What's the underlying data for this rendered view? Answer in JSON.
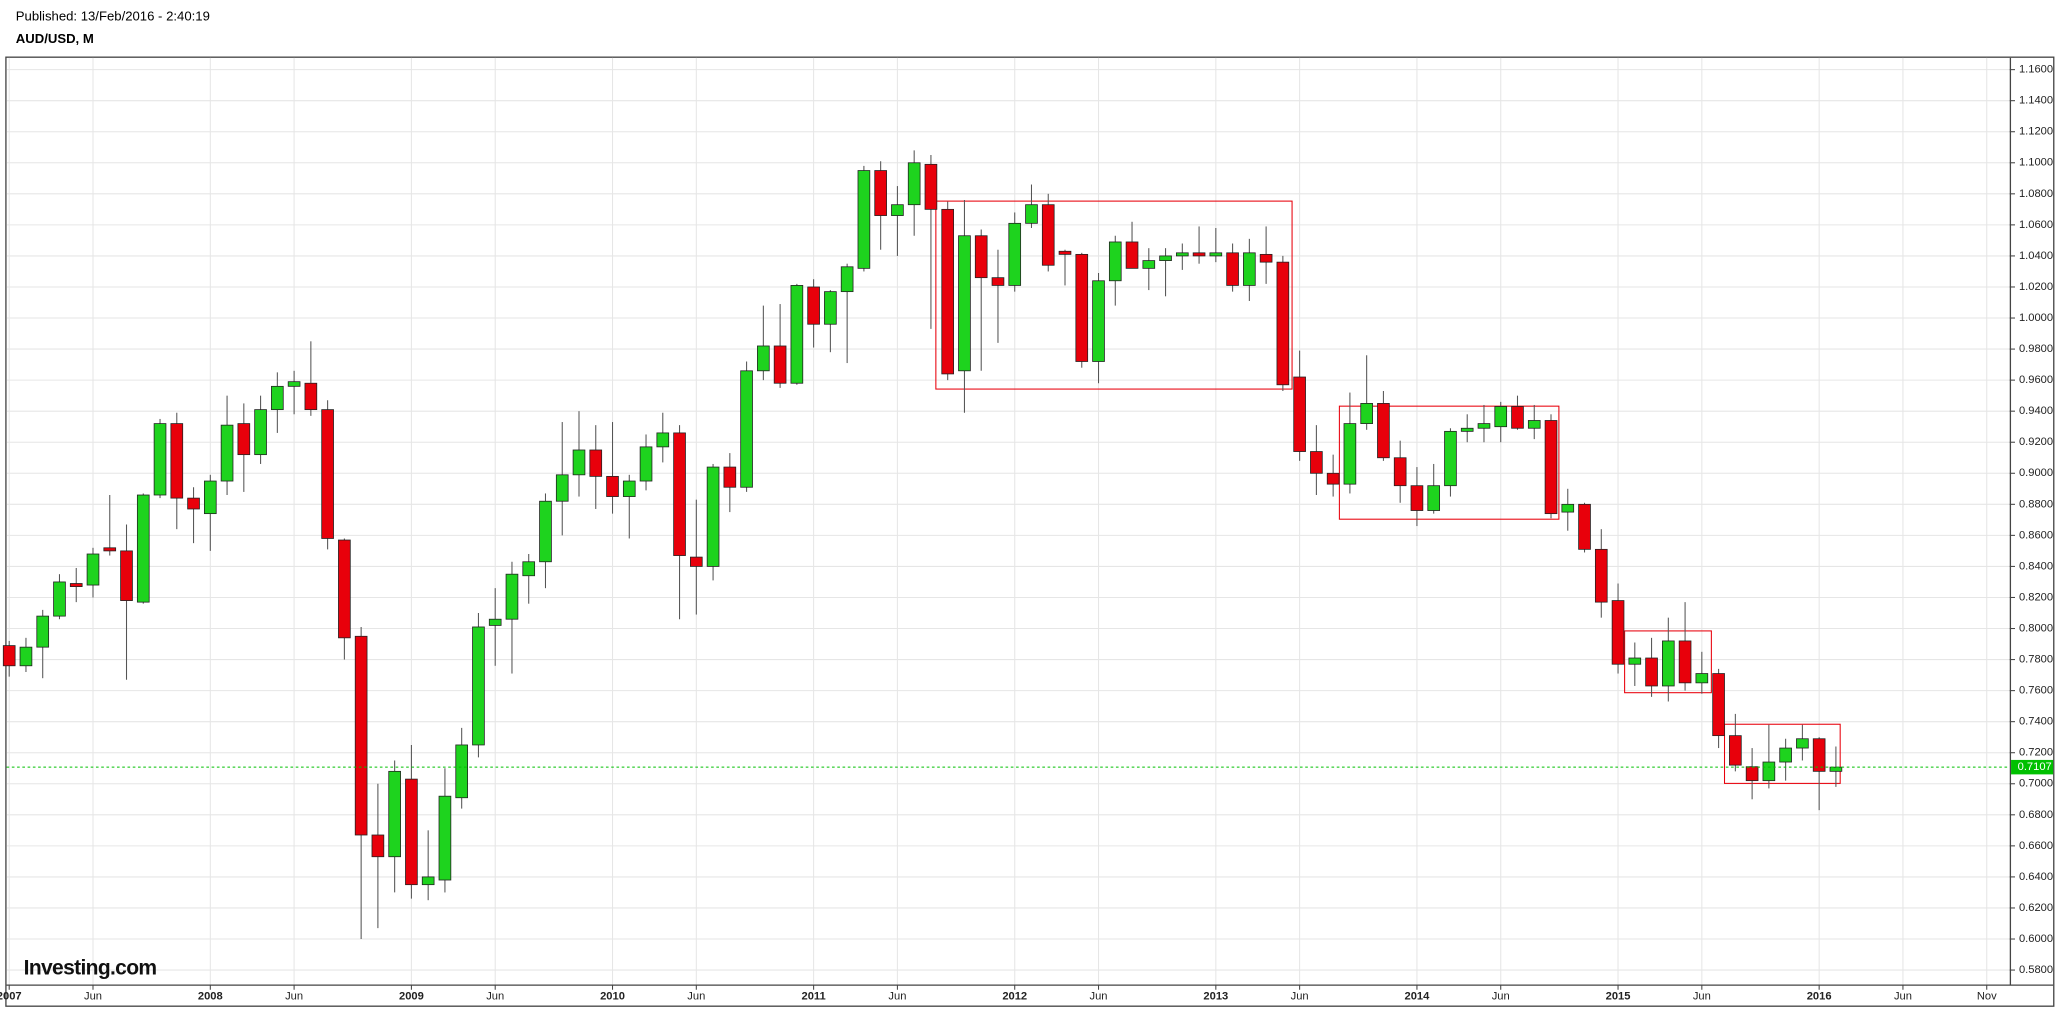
{
  "chart_data": {
    "type": "candlestick",
    "published": "Published: 13/Feb/2016 - 2:40:19",
    "title": "AUD/USD, M",
    "logo": "Investing.com",
    "categories": [
      "2007-01",
      "2007-02",
      "2007-03",
      "2007-04",
      "2007-05",
      "2007-06",
      "2007-07",
      "2007-08",
      "2007-09",
      "2007-10",
      "2007-11",
      "2007-12",
      "2008-01",
      "2008-02",
      "2008-03",
      "2008-04",
      "2008-05",
      "2008-06",
      "2008-07",
      "2008-08",
      "2008-09",
      "2008-10",
      "2008-11",
      "2008-12",
      "2009-01",
      "2009-02",
      "2009-03",
      "2009-04",
      "2009-05",
      "2009-06",
      "2009-07",
      "2009-08",
      "2009-09",
      "2009-10",
      "2009-11",
      "2009-12",
      "2010-01",
      "2010-02",
      "2010-03",
      "2010-04",
      "2010-05",
      "2010-06",
      "2010-07",
      "2010-08",
      "2010-09",
      "2010-10",
      "2010-11",
      "2010-12",
      "2011-01",
      "2011-02",
      "2011-03",
      "2011-04",
      "2011-05",
      "2011-06",
      "2011-07",
      "2011-08",
      "2011-09",
      "2011-10",
      "2011-11",
      "2011-12",
      "2012-01",
      "2012-02",
      "2012-03",
      "2012-04",
      "2012-05",
      "2012-06",
      "2012-07",
      "2012-08",
      "2012-09",
      "2012-10",
      "2012-11",
      "2012-12",
      "2013-01",
      "2013-02",
      "2013-03",
      "2013-04",
      "2013-05",
      "2013-06",
      "2013-07",
      "2013-08",
      "2013-09",
      "2013-10",
      "2013-11",
      "2013-12",
      "2014-01",
      "2014-02",
      "2014-03",
      "2014-04",
      "2014-05",
      "2014-06",
      "2014-07",
      "2014-08",
      "2014-09",
      "2014-10",
      "2014-11",
      "2014-12",
      "2015-01",
      "2015-02",
      "2015-03",
      "2015-04",
      "2015-05",
      "2015-06",
      "2015-07",
      "2015-08",
      "2015-09",
      "2015-10",
      "2015-11",
      "2015-12",
      "2016-01",
      "2016-02"
    ],
    "open": [
      0.789,
      0.776,
      0.788,
      0.808,
      0.829,
      0.828,
      0.852,
      0.85,
      0.817,
      0.886,
      0.932,
      0.884,
      0.874,
      0.895,
      0.932,
      0.912,
      0.941,
      0.956,
      0.958,
      0.941,
      0.857,
      0.795,
      0.667,
      0.653,
      0.703,
      0.635,
      0.638,
      0.691,
      0.725,
      0.802,
      0.806,
      0.834,
      0.843,
      0.882,
      0.899,
      0.915,
      0.898,
      0.885,
      0.895,
      0.917,
      0.926,
      0.846,
      0.84,
      0.904,
      0.891,
      0.966,
      0.982,
      0.958,
      1.02,
      0.996,
      1.017,
      1.032,
      1.095,
      1.066,
      1.073,
      1.099,
      1.07,
      0.966,
      1.053,
      1.026,
      1.021,
      1.061,
      1.073,
      1.043,
      1.041,
      0.972,
      1.024,
      1.049,
      1.032,
      1.037,
      1.04,
      1.042,
      1.04,
      1.042,
      1.021,
      1.041,
      1.036,
      0.962,
      0.914,
      0.9,
      0.893,
      0.932,
      0.945,
      0.91,
      0.892,
      0.876,
      0.892,
      0.927,
      0.929,
      0.93,
      0.943,
      0.929,
      0.934,
      0.875,
      0.88,
      0.851,
      0.818,
      0.777,
      0.781,
      0.763,
      0.792,
      0.765,
      0.771,
      0.731,
      0.711,
      0.702,
      0.714,
      0.723,
      0.729,
      0.708
    ],
    "high": [
      0.792,
      0.794,
      0.812,
      0.835,
      0.839,
      0.852,
      0.886,
      0.867,
      0.887,
      0.935,
      0.939,
      0.891,
      0.899,
      0.95,
      0.945,
      0.95,
      0.965,
      0.966,
      0.985,
      0.947,
      0.858,
      0.801,
      0.7,
      0.715,
      0.725,
      0.67,
      0.71,
      0.736,
      0.81,
      0.826,
      0.843,
      0.848,
      0.887,
      0.933,
      0.94,
      0.931,
      0.933,
      0.899,
      0.925,
      0.939,
      0.931,
      0.883,
      0.906,
      0.913,
      0.972,
      1.008,
      1.009,
      1.022,
      1.025,
      1.018,
      1.035,
      1.098,
      1.101,
      1.085,
      1.108,
      1.105,
      1.075,
      1.076,
      1.057,
      1.044,
      1.068,
      1.086,
      1.08,
      1.044,
      1.042,
      1.029,
      1.053,
      1.062,
      1.045,
      1.045,
      1.048,
      1.059,
      1.058,
      1.048,
      1.051,
      1.059,
      1.04,
      0.979,
      0.931,
      0.912,
      0.952,
      0.976,
      0.953,
      0.921,
      0.904,
      0.906,
      0.929,
      0.938,
      0.944,
      0.946,
      0.95,
      0.944,
      0.938,
      0.89,
      0.881,
      0.864,
      0.829,
      0.791,
      0.794,
      0.807,
      0.817,
      0.785,
      0.774,
      0.745,
      0.723,
      0.738,
      0.729,
      0.738,
      0.73,
      0.724
    ],
    "low": [
      0.769,
      0.772,
      0.768,
      0.806,
      0.817,
      0.82,
      0.847,
      0.767,
      0.816,
      0.884,
      0.864,
      0.855,
      0.85,
      0.886,
      0.888,
      0.906,
      0.926,
      0.938,
      0.937,
      0.851,
      0.78,
      0.6,
      0.607,
      0.63,
      0.626,
      0.625,
      0.63,
      0.684,
      0.717,
      0.776,
      0.771,
      0.816,
      0.826,
      0.86,
      0.885,
      0.877,
      0.874,
      0.858,
      0.889,
      0.907,
      0.806,
      0.809,
      0.831,
      0.875,
      0.888,
      0.96,
      0.955,
      0.957,
      0.981,
      0.978,
      0.971,
      1.03,
      1.044,
      1.04,
      1.053,
      0.993,
      0.96,
      0.939,
      0.966,
      0.984,
      1.017,
      1.058,
      1.03,
      1.021,
      0.968,
      0.958,
      1.008,
      1.032,
      1.018,
      1.014,
      1.031,
      1.035,
      1.036,
      1.017,
      1.011,
      1.022,
      0.953,
      0.908,
      0.886,
      0.885,
      0.887,
      0.928,
      0.908,
      0.881,
      0.866,
      0.874,
      0.885,
      0.92,
      0.92,
      0.92,
      0.928,
      0.922,
      0.871,
      0.863,
      0.849,
      0.807,
      0.771,
      0.763,
      0.756,
      0.753,
      0.76,
      0.758,
      0.723,
      0.708,
      0.69,
      0.697,
      0.702,
      0.715,
      0.683,
      0.698
    ],
    "close": [
      0.776,
      0.788,
      0.808,
      0.83,
      0.827,
      0.848,
      0.85,
      0.818,
      0.886,
      0.932,
      0.884,
      0.877,
      0.895,
      0.931,
      0.912,
      0.941,
      0.956,
      0.959,
      0.941,
      0.858,
      0.794,
      0.667,
      0.653,
      0.708,
      0.635,
      0.64,
      0.692,
      0.725,
      0.801,
      0.806,
      0.835,
      0.843,
      0.882,
      0.899,
      0.915,
      0.898,
      0.885,
      0.895,
      0.917,
      0.926,
      0.847,
      0.84,
      0.904,
      0.891,
      0.966,
      0.982,
      0.958,
      1.021,
      0.996,
      1.017,
      1.033,
      1.095,
      1.066,
      1.073,
      1.1,
      1.07,
      0.964,
      1.053,
      1.026,
      1.021,
      1.061,
      1.073,
      1.034,
      1.041,
      0.972,
      1.024,
      1.049,
      1.032,
      1.037,
      1.04,
      1.042,
      1.04,
      1.042,
      1.021,
      1.042,
      1.036,
      0.957,
      0.914,
      0.9,
      0.893,
      0.932,
      0.945,
      0.91,
      0.892,
      0.876,
      0.892,
      0.927,
      0.929,
      0.932,
      0.943,
      0.929,
      0.934,
      0.874,
      0.88,
      0.851,
      0.817,
      0.777,
      0.781,
      0.763,
      0.792,
      0.765,
      0.771,
      0.731,
      0.712,
      0.702,
      0.714,
      0.723,
      0.729,
      0.708,
      0.7107
    ],
    "up_color": "#1ed31e",
    "down_color": "#e8000b",
    "last_price": 0.7107,
    "last_price_color": "#00c000",
    "ylim": [
      0.5707,
      1.1676
    ],
    "yticks": [
      {
        "value": 0.58,
        "label": "0.5800"
      },
      {
        "value": 0.6,
        "label": "0.6000"
      },
      {
        "value": 0.62,
        "label": "0.6200"
      },
      {
        "value": 0.64,
        "label": "0.6400"
      },
      {
        "value": 0.66,
        "label": "0.6600"
      },
      {
        "value": 0.68,
        "label": "0.6800"
      },
      {
        "value": 0.7,
        "label": "0.7000"
      },
      {
        "value": 0.72,
        "label": "0.7200"
      },
      {
        "value": 0.74,
        "label": "0.7400"
      },
      {
        "value": 0.76,
        "label": "0.7600"
      },
      {
        "value": 0.78,
        "label": "0.7800"
      },
      {
        "value": 0.8,
        "label": "0.8000"
      },
      {
        "value": 0.82,
        "label": "0.8200"
      },
      {
        "value": 0.84,
        "label": "0.8400"
      },
      {
        "value": 0.86,
        "label": "0.8600"
      },
      {
        "value": 0.88,
        "label": "0.8800"
      },
      {
        "value": 0.9,
        "label": "0.9000"
      },
      {
        "value": 0.92,
        "label": "0.9200"
      },
      {
        "value": 0.94,
        "label": "0.9400"
      },
      {
        "value": 0.96,
        "label": "0.9600"
      },
      {
        "value": 0.98,
        "label": "0.9800"
      },
      {
        "value": 1.0,
        "label": "1.0000"
      },
      {
        "value": 1.02,
        "label": "1.0200"
      },
      {
        "value": 1.04,
        "label": "1.0400"
      },
      {
        "value": 1.06,
        "label": "1.0600"
      },
      {
        "value": 1.08,
        "label": "1.0800"
      },
      {
        "value": 1.1,
        "label": "1.1000"
      },
      {
        "value": 1.12,
        "label": "1.1200"
      },
      {
        "value": 1.14,
        "label": "1.1400"
      },
      {
        "value": 1.16,
        "label": "1.1600"
      }
    ],
    "xticks": [
      {
        "value": "2007-01",
        "label": "2007"
      },
      {
        "value": "2007-06",
        "label": "Jun"
      },
      {
        "value": "2008-01",
        "label": "2008"
      },
      {
        "value": "2008-06",
        "label": "Jun"
      },
      {
        "value": "2009-01",
        "label": "2009"
      },
      {
        "value": "2009-06",
        "label": "Jun"
      },
      {
        "value": "2010-01",
        "label": "2010"
      },
      {
        "value": "2010-06",
        "label": "Jun"
      },
      {
        "value": "2011-01",
        "label": "2011"
      },
      {
        "value": "2011-06",
        "label": "Jun"
      },
      {
        "value": "2012-01",
        "label": "2012"
      },
      {
        "value": "2012-06",
        "label": "Jun"
      },
      {
        "value": "2013-01",
        "label": "2013"
      },
      {
        "value": "2013-06",
        "label": "Jun"
      },
      {
        "value": "2014-01",
        "label": "2014"
      },
      {
        "value": "2014-06",
        "label": "Jun"
      },
      {
        "value": "2015-01",
        "label": "2015"
      },
      {
        "value": "2015-06",
        "label": "Jun"
      },
      {
        "value": "2016-01",
        "label": "2016"
      },
      {
        "value": "2016-06",
        "label": "Jun"
      },
      {
        "value": "2016-11",
        "label": "Nov"
      }
    ],
    "grid": true
  }
}
